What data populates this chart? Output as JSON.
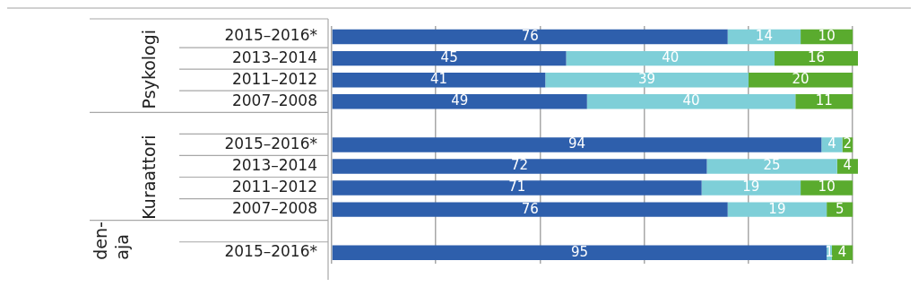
{
  "chart_data": {
    "type": "bar",
    "orientation": "horizontal",
    "stacked": true,
    "data_labels": true,
    "legend": false,
    "grid": "x",
    "tick_labels": "y",
    "categories": [
      "2015–2016*",
      "2013–2014",
      "2011–2012",
      "2007–2008",
      null,
      "2015–2016*",
      "2013–2014",
      "2011–2012",
      "2007–2008",
      null,
      "2015–2016*"
    ],
    "annotations": [
      "Psykologi",
      "Kuraattori",
      "den-\naja"
    ],
    "xticks": [
      {
        "value": 0,
        "label": null
      },
      {
        "value": 20,
        "label": null
      },
      {
        "value": 40,
        "label": null
      },
      {
        "value": 60,
        "label": null
      },
      {
        "value": 80,
        "label": null
      },
      {
        "value": 100,
        "label": null
      }
    ],
    "series": [
      {
        "color": "#2e5fac",
        "values": [
          76,
          45,
          41,
          49,
          null,
          94,
          72,
          71,
          76,
          null,
          95
        ]
      },
      {
        "color": "#7ecfd8",
        "values": [
          14,
          40,
          39,
          40,
          null,
          4,
          25,
          19,
          19,
          null,
          1
        ]
      },
      {
        "color": "#5aab2e",
        "values": [
          10,
          16,
          20,
          11,
          null,
          2,
          4,
          10,
          5,
          null,
          4
        ]
      }
    ]
  }
}
